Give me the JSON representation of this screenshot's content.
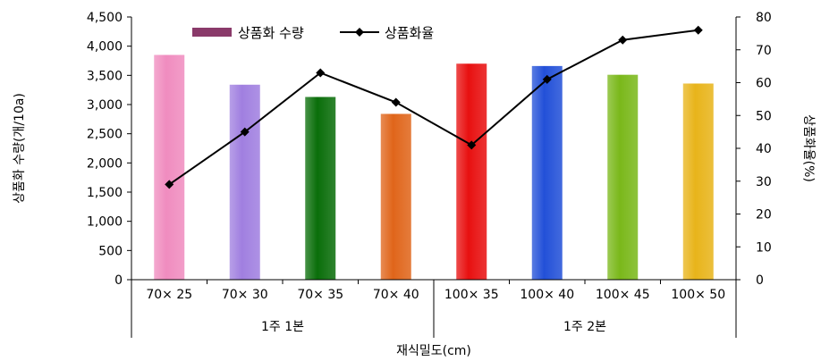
{
  "chart_data": {
    "type": "bar",
    "categories": [
      "70× 25",
      "70× 30",
      "70× 35",
      "70× 40",
      "100× 35",
      "100× 40",
      "100× 45",
      "100× 50"
    ],
    "groups": [
      {
        "label": "1주 1본",
        "count": 4
      },
      {
        "label": "1주 2본",
        "count": 4
      }
    ],
    "series": [
      {
        "name": "상품화 수량",
        "type": "bar",
        "axis": "left",
        "values": [
          3850,
          3340,
          3130,
          2840,
          3700,
          3660,
          3510,
          3360
        ],
        "colors": [
          "#f08cbf",
          "#a07fe0",
          "#0a6e0a",
          "#e0651a",
          "#e81010",
          "#2250d8",
          "#7ab81a",
          "#e8b41a"
        ],
        "legend_color": "#8a3a6a"
      },
      {
        "name": "상품화율",
        "type": "line",
        "axis": "right",
        "values": [
          29,
          45,
          63,
          54,
          41,
          61,
          73,
          76
        ],
        "color": "#000000"
      }
    ],
    "xlabel": "재식밀도(cm)",
    "ylabel": "상품화 수량(개/10a)",
    "ylabel_right": "상품화율(%)",
    "ylim": [
      0,
      4500
    ],
    "ylim_right": [
      0,
      80
    ],
    "yticks": [
      "0",
      "500",
      "1,000",
      "1,500",
      "2,000",
      "2,500",
      "3,000",
      "3,500",
      "4,000",
      "4,500"
    ],
    "yticks_right": [
      "0",
      "10",
      "20",
      "30",
      "40",
      "50",
      "60",
      "70",
      "80"
    ],
    "grid": false,
    "legend_position": "top-center"
  }
}
